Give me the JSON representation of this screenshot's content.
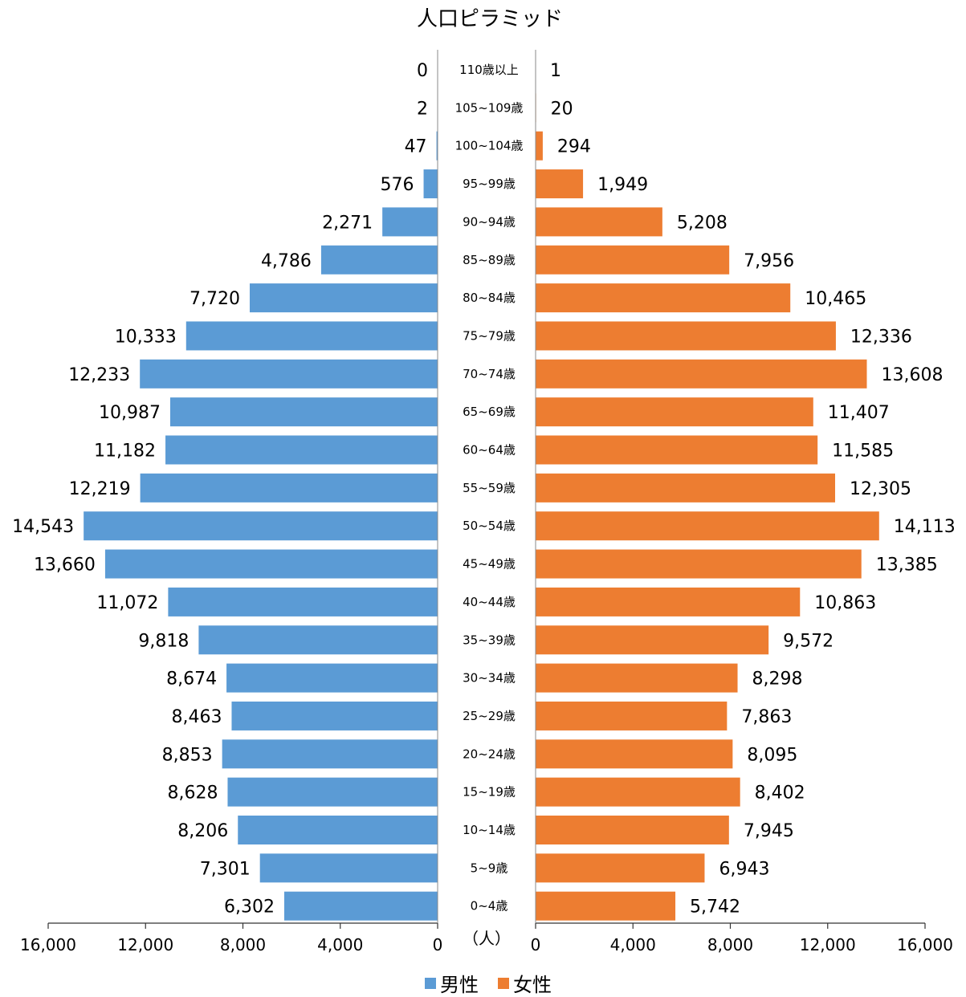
{
  "chart_data": {
    "type": "bar",
    "title": "人口ピラミッド",
    "unit_label": "（人）",
    "categories": [
      "110歳以上",
      "105~109歳",
      "100~104歳",
      "95~99歳",
      "90~94歳",
      "85~89歳",
      "80~84歳",
      "75~79歳",
      "70~74歳",
      "65~69歳",
      "60~64歳",
      "55~59歳",
      "50~54歳",
      "45~49歳",
      "40~44歳",
      "35~39歳",
      "30~34歳",
      "25~29歳",
      "20~24歳",
      "15~19歳",
      "10~14歳",
      "5~9歳",
      "0~4歳"
    ],
    "series": [
      {
        "name": "男性",
        "color": "#5b9bd5",
        "values": [
          0,
          2,
          47,
          576,
          2271,
          4786,
          7720,
          10333,
          12233,
          10987,
          11182,
          12219,
          14543,
          13660,
          11072,
          9818,
          8674,
          8463,
          8853,
          8628,
          8206,
          7301,
          6302
        ],
        "labels": [
          "0",
          "2",
          "47",
          "576",
          "2,271",
          "4,786",
          "7,720",
          "10,333",
          "12,233",
          "10,987",
          "11,182",
          "12,219",
          "14,543",
          "13,660",
          "11,072",
          "9,818",
          "8,674",
          "8,463",
          "8,853",
          "8,628",
          "8,206",
          "7,301",
          "6,302"
        ]
      },
      {
        "name": "女性",
        "color": "#ed7d31",
        "values": [
          1,
          20,
          294,
          1949,
          5208,
          7956,
          10465,
          12336,
          13608,
          11407,
          11585,
          12305,
          14113,
          13385,
          10863,
          9572,
          8298,
          7863,
          8095,
          8402,
          7945,
          6943,
          5742
        ],
        "labels": [
          "1",
          "20",
          "294",
          "1,949",
          "5,208",
          "7,956",
          "10,465",
          "12,336",
          "13,608",
          "11,407",
          "11,585",
          "12,305",
          "14,113",
          "13,385",
          "10,863",
          "9,572",
          "8,298",
          "7,863",
          "8,095",
          "8,402",
          "7,945",
          "6,943",
          "5,742"
        ]
      }
    ],
    "xlim": [
      0,
      16000
    ],
    "ticks": [
      0,
      4000,
      8000,
      12000,
      16000
    ],
    "tick_labels": [
      "0",
      "4,000",
      "8,000",
      "12,000",
      "16,000"
    ],
    "legend_position": "bottom",
    "grid": false
  }
}
